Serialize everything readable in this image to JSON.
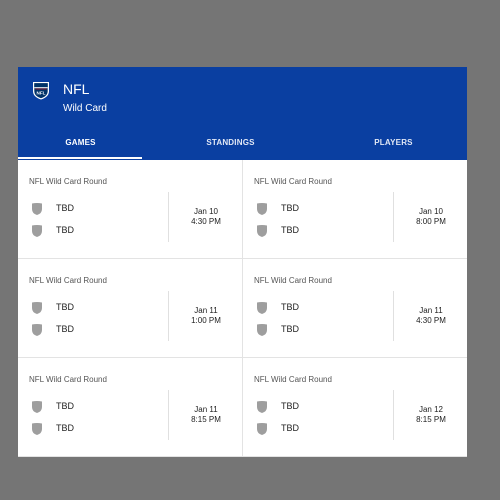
{
  "header": {
    "title": "NFL",
    "subtitle": "Wild Card",
    "logo_icon": "nfl-shield-logo-icon",
    "background_color": "#0a3fa1"
  },
  "tabs": [
    {
      "label": "GAMES",
      "active": true
    },
    {
      "label": "STANDINGS",
      "active": false
    },
    {
      "label": "PLAYERS",
      "active": false
    }
  ],
  "games": [
    {
      "round": "NFL Wild Card Round",
      "team1": "TBD",
      "team2": "TBD",
      "date": "Jan 10",
      "time": "4:30 PM"
    },
    {
      "round": "NFL Wild Card Round",
      "team1": "TBD",
      "team2": "TBD",
      "date": "Jan 10",
      "time": "8:00 PM"
    },
    {
      "round": "NFL Wild Card Round",
      "team1": "TBD",
      "team2": "TBD",
      "date": "Jan 11",
      "time": "1:00 PM"
    },
    {
      "round": "NFL Wild Card Round",
      "team1": "TBD",
      "team2": "TBD",
      "date": "Jan 11",
      "time": "4:30 PM"
    },
    {
      "round": "NFL Wild Card Round",
      "team1": "TBD",
      "team2": "TBD",
      "date": "Jan 11",
      "time": "8:15 PM"
    },
    {
      "round": "NFL Wild Card Round",
      "team1": "TBD",
      "team2": "TBD",
      "date": "Jan 12",
      "time": "8:15 PM"
    }
  ],
  "team_icon": "team-shield-icon"
}
